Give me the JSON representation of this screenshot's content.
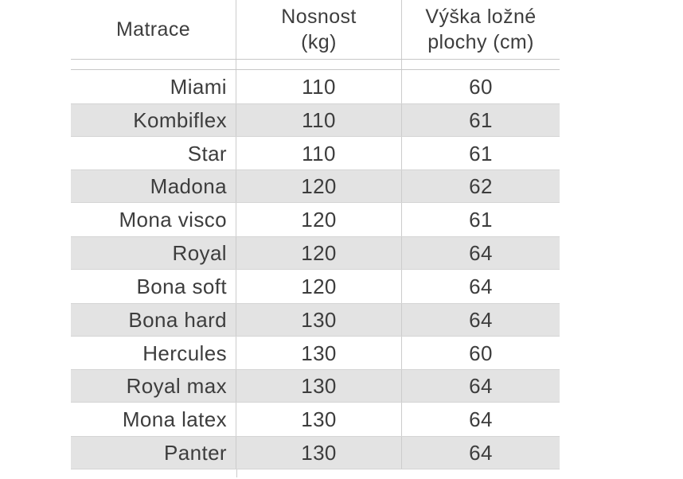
{
  "header": {
    "col1": {
      "line1": "Matrace"
    },
    "col2": {
      "line1": "Nosnost",
      "line2": "(kg)"
    },
    "col3": {
      "line1": "Výška ložné",
      "line2": "plochy (cm)"
    }
  },
  "rows": [
    {
      "name": "Miami",
      "load": "110",
      "height": "60"
    },
    {
      "name": "Kombiflex",
      "load": "110",
      "height": "61"
    },
    {
      "name": "Star",
      "load": "110",
      "height": "61"
    },
    {
      "name": "Madona",
      "load": "120",
      "height": "62"
    },
    {
      "name": "Mona visco",
      "load": "120",
      "height": "61"
    },
    {
      "name": "Royal",
      "load": "120",
      "height": "64"
    },
    {
      "name": "Bona soft",
      "load": "120",
      "height": "64"
    },
    {
      "name": "Bona hard",
      "load": "130",
      "height": "64"
    },
    {
      "name": "Hercules",
      "load": "130",
      "height": "60"
    },
    {
      "name": "Royal max",
      "load": "130",
      "height": "64"
    },
    {
      "name": "Mona latex",
      "load": "130",
      "height": "64"
    },
    {
      "name": "Panter",
      "load": "130",
      "height": "64"
    }
  ],
  "chart_data": {
    "type": "table",
    "columns": [
      "Matrace",
      "Nosnost (kg)",
      "Výška ložné plochy (cm)"
    ],
    "rows": [
      [
        "Miami",
        110,
        60
      ],
      [
        "Kombiflex",
        110,
        61
      ],
      [
        "Star",
        110,
        61
      ],
      [
        "Madona",
        120,
        62
      ],
      [
        "Mona visco",
        120,
        61
      ],
      [
        "Royal",
        120,
        64
      ],
      [
        "Bona soft",
        120,
        64
      ],
      [
        "Bona hard",
        130,
        64
      ],
      [
        "Hercules",
        130,
        60
      ],
      [
        "Royal max",
        130,
        64
      ],
      [
        "Mona latex",
        130,
        64
      ],
      [
        "Panter",
        130,
        64
      ]
    ]
  },
  "colors": {
    "row_alt_background": "#e3e3e3",
    "rule_line": "#c8c8c8",
    "text": "#3d3d3d"
  }
}
